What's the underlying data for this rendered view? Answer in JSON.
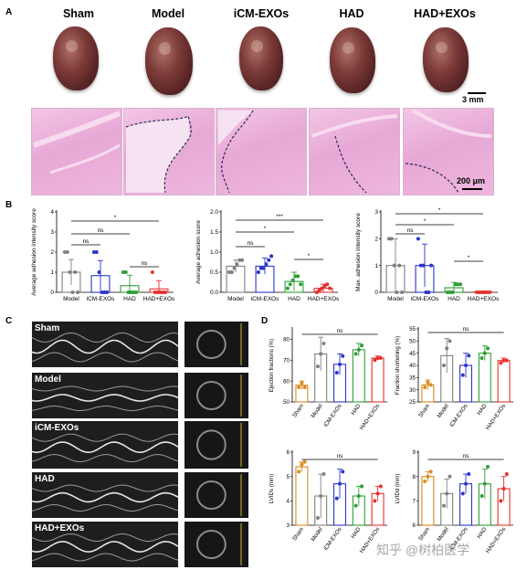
{
  "panel_a": {
    "letter": "A",
    "groups": [
      "Sham",
      "Model",
      "iCM-EXOs",
      "HAD",
      "HAD+EXOs"
    ],
    "scale_top": "3 mm",
    "scale_bottom": "200 μm"
  },
  "panel_b": {
    "letter": "B"
  },
  "panel_c": {
    "letter": "C",
    "groups": [
      "Sham",
      "Model",
      "iCM-EXOs",
      "HAD",
      "HAD+EXOs"
    ]
  },
  "panel_d": {
    "letter": "D"
  },
  "watermark": "知乎 @树柏医学",
  "chart_data": [
    {
      "type": "bar",
      "panel": "B1",
      "categories": [
        "Model",
        "iCM-EXOs",
        "HAD",
        "HAD+EXOs"
      ],
      "values": [
        1.0,
        0.83,
        0.33,
        0.17
      ],
      "errors": [
        0.63,
        0.75,
        0.52,
        0.41
      ],
      "points": [
        [
          2,
          2,
          1,
          0,
          1,
          0
        ],
        [
          2,
          2,
          1,
          0,
          0,
          0
        ],
        [
          1,
          1,
          0,
          0,
          0,
          0
        ],
        [
          1,
          0,
          0,
          0,
          0,
          0
        ]
      ],
      "colors": [
        "#808080",
        "#2b35c8",
        "#2e9e36",
        "#e5312c"
      ],
      "ylabel": "Average adhesion intensity score",
      "yticks": [
        "0",
        "1",
        "2",
        "3",
        "4"
      ],
      "ylim": [
        0,
        4
      ],
      "comparisons": [
        {
          "from": "Model",
          "to": "iCM-EXOs",
          "label": "ns"
        },
        {
          "from": "Model",
          "to": "HAD",
          "label": "ns"
        },
        {
          "from": "Model",
          "to": "HAD+EXOs",
          "label": "*"
        },
        {
          "from": "HAD",
          "to": "HAD+EXOs",
          "label": "ns"
        }
      ]
    },
    {
      "type": "bar",
      "panel": "B2",
      "categories": [
        "Model",
        "iCM-EXOs",
        "HAD",
        "HAD+EXOs"
      ],
      "values": [
        0.65,
        0.65,
        0.27,
        0.1
      ],
      "errors": [
        0.15,
        0.2,
        0.23,
        0.1
      ],
      "points": [
        [
          0.5,
          0.5,
          0.6,
          0.7,
          0.8,
          0.8
        ],
        [
          0.5,
          0.6,
          0.6,
          0.7,
          0.8,
          0.9
        ],
        [
          0.1,
          0.2,
          0.3,
          0.4,
          0.4,
          0.2
        ],
        [
          0,
          0.05,
          0.1,
          0.15,
          0.2,
          0.1
        ]
      ],
      "colors": [
        "#808080",
        "#2b35c8",
        "#2e9e36",
        "#e5312c"
      ],
      "ylabel": "Average adhesion score",
      "yticks": [
        "0.0",
        "0.5",
        "1.0",
        "1.5",
        "2.0"
      ],
      "ylim": [
        0,
        2
      ],
      "comparisons": [
        {
          "from": "Model",
          "to": "iCM-EXOs",
          "label": "ns"
        },
        {
          "from": "Model",
          "to": "HAD",
          "label": "*"
        },
        {
          "from": "Model",
          "to": "HAD+EXOs",
          "label": "***"
        },
        {
          "from": "HAD",
          "to": "HAD+EXOs",
          "label": "*"
        }
      ]
    },
    {
      "type": "bar",
      "panel": "B3",
      "categories": [
        "Model",
        "iCM-EXOs",
        "HAD",
        "HAD+EXOs"
      ],
      "values": [
        1.0,
        1.0,
        0.17,
        0.02
      ],
      "errors": [
        1.0,
        0.8,
        0.2,
        0.03
      ],
      "points": [
        [
          2,
          2,
          1,
          0,
          1,
          0
        ],
        [
          2,
          1,
          1,
          0,
          0,
          1
        ],
        [
          0,
          0,
          0,
          0.3,
          0.3,
          0.3
        ],
        [
          0,
          0,
          0,
          0,
          0,
          0
        ]
      ],
      "colors": [
        "#808080",
        "#2b35c8",
        "#2e9e36",
        "#e5312c"
      ],
      "ylabel": "Max. adhesion intensity score",
      "yticks": [
        "0",
        "1",
        "2",
        "3"
      ],
      "ylim": [
        0,
        3
      ],
      "comparisons": [
        {
          "from": "Model",
          "to": "iCM-EXOs",
          "label": "ns"
        },
        {
          "from": "Model",
          "to": "HAD",
          "label": "*"
        },
        {
          "from": "Model",
          "to": "HAD+EXOs",
          "label": "*"
        },
        {
          "from": "HAD",
          "to": "HAD+EXOs",
          "label": "*"
        }
      ]
    },
    {
      "type": "bar",
      "panel": "D1",
      "categories": [
        "Sham",
        "Model",
        "iCM-EXOs",
        "HAD",
        "HAD+EXOs"
      ],
      "values": [
        58,
        73,
        68,
        75,
        71
      ],
      "errors": [
        2,
        8,
        5,
        3,
        1
      ],
      "points": [
        [
          57,
          59,
          57
        ],
        [
          67,
          73,
          78
        ],
        [
          64,
          68,
          72
        ],
        [
          73,
          75,
          77
        ],
        [
          70,
          71,
          71
        ]
      ],
      "colors": [
        "#d88a1f",
        "#808080",
        "#2b35c8",
        "#2e9e36",
        "#e5312c"
      ],
      "ylabel": "Ejection fractions (%)",
      "yticks": [
        "50",
        "60",
        "70",
        "80"
      ],
      "ylim": [
        50,
        85
      ],
      "comparisons": [
        {
          "from": "Sham",
          "to": "HAD+EXOs",
          "label": "ns"
        }
      ]
    },
    {
      "type": "bar",
      "panel": "D2",
      "categories": [
        "Sham",
        "Model",
        "iCM-EXOs",
        "HAD",
        "HAD+EXOs"
      ],
      "values": [
        32,
        44,
        40,
        45,
        42
      ],
      "errors": [
        2,
        7,
        5,
        3,
        1
      ],
      "points": [
        [
          31,
          33,
          32
        ],
        [
          40,
          47,
          50
        ],
        [
          36,
          40,
          44
        ],
        [
          43,
          45,
          47
        ],
        [
          41,
          42,
          42
        ]
      ],
      "colors": [
        "#d88a1f",
        "#808080",
        "#2b35c8",
        "#2e9e36",
        "#e5312c"
      ],
      "ylabel": "Fraction shortening (%)",
      "yticks": [
        "25",
        "30",
        "35",
        "40",
        "45",
        "50",
        "55"
      ],
      "ylim": [
        25,
        55
      ],
      "comparisons": [
        {
          "from": "Sham",
          "to": "HAD+EXOs",
          "label": "ns"
        }
      ]
    },
    {
      "type": "bar",
      "panel": "D3",
      "categories": [
        "Sham",
        "Model",
        "iCM-EXOs",
        "HAD",
        "HAD+EXOs"
      ],
      "values": [
        5.4,
        4.2,
        4.7,
        4.2,
        4.3
      ],
      "errors": [
        0.2,
        0.9,
        0.6,
        0.4,
        0.3
      ],
      "points": [
        [
          5.2,
          5.5,
          5.6
        ],
        [
          3.3,
          4.2,
          5.1
        ],
        [
          4.1,
          4.7,
          5.2
        ],
        [
          3.8,
          4.2,
          4.6
        ],
        [
          4.0,
          4.3,
          4.6
        ]
      ],
      "colors": [
        "#d88a1f",
        "#808080",
        "#2b35c8",
        "#2e9e36",
        "#e5312c"
      ],
      "ylabel": "LVIDs (mm)",
      "yticks": [
        "3",
        "4",
        "5",
        "6"
      ],
      "ylim": [
        3,
        6
      ],
      "comparisons": [
        {
          "from": "Sham",
          "to": "HAD+EXOs",
          "label": "ns"
        }
      ]
    },
    {
      "type": "bar",
      "panel": "D4",
      "categories": [
        "Sham",
        "Model",
        "iCM-EXOs",
        "HAD",
        "HAD+EXOs"
      ],
      "values": [
        8.0,
        7.3,
        7.7,
        7.7,
        7.5
      ],
      "errors": [
        0.2,
        0.6,
        0.4,
        0.6,
        0.5
      ],
      "points": [
        [
          7.8,
          8.0,
          8.2
        ],
        [
          6.8,
          7.3,
          8.0
        ],
        [
          7.3,
          7.7,
          8.1
        ],
        [
          7.2,
          7.7,
          8.4
        ],
        [
          7.0,
          7.5,
          8.1
        ]
      ],
      "colors": [
        "#d88a1f",
        "#808080",
        "#2b35c8",
        "#2e9e36",
        "#e5312c"
      ],
      "ylabel": "LVIDd (mm)",
      "yticks": [
        "6",
        "7",
        "8",
        "9"
      ],
      "ylim": [
        6,
        9
      ],
      "comparisons": [
        {
          "from": "Sham",
          "to": "HAD+EXOs",
          "label": "ns"
        }
      ]
    }
  ]
}
